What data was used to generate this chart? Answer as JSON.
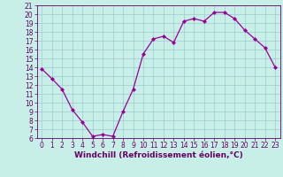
{
  "x": [
    0,
    1,
    2,
    3,
    4,
    5,
    6,
    7,
    8,
    9,
    10,
    11,
    12,
    13,
    14,
    15,
    16,
    17,
    18,
    19,
    20,
    21,
    22,
    23
  ],
  "y": [
    13.8,
    12.7,
    11.5,
    9.2,
    7.8,
    6.2,
    6.4,
    6.2,
    9.0,
    11.5,
    15.5,
    17.2,
    17.5,
    16.8,
    19.2,
    19.5,
    19.2,
    20.2,
    20.2,
    19.5,
    18.2,
    17.2,
    16.2,
    14.0
  ],
  "line_color": "#990099",
  "marker": "D",
  "marker_size": 2.0,
  "bg_color": "#c8eee8",
  "grid_color": "#99cccc",
  "xlabel": "Windchill (Refroidissement éolien,°C)",
  "ylim": [
    6,
    21
  ],
  "xlim": [
    -0.5,
    23.5
  ],
  "yticks": [
    6,
    7,
    8,
    9,
    10,
    11,
    12,
    13,
    14,
    15,
    16,
    17,
    18,
    19,
    20,
    21
  ],
  "xticks": [
    0,
    1,
    2,
    3,
    4,
    5,
    6,
    7,
    8,
    9,
    10,
    11,
    12,
    13,
    14,
    15,
    16,
    17,
    18,
    19,
    20,
    21,
    22,
    23
  ],
  "tick_color": "#660066",
  "xlabel_fontsize": 6.5,
  "tick_fontsize": 5.5,
  "line_width": 0.9
}
